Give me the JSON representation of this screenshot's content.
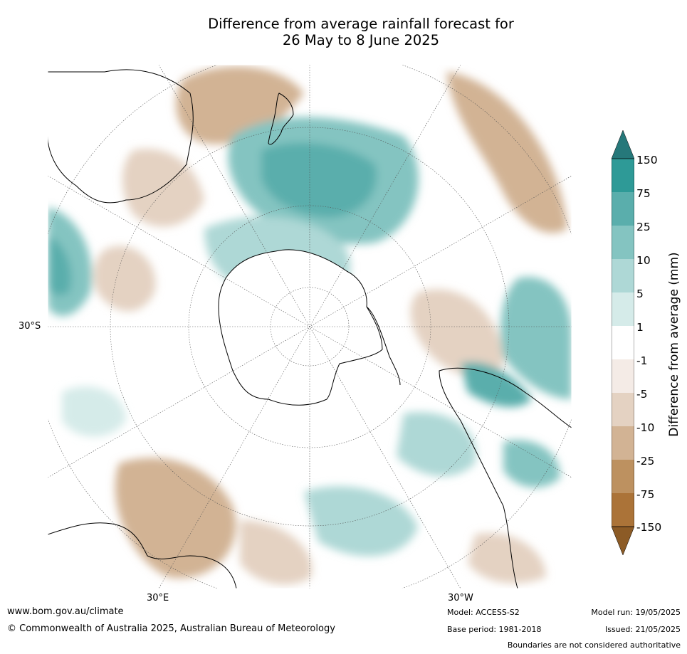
{
  "title": {
    "line1": "Difference from average rainfall forecast for",
    "line2": "26 May to 8 June 2025"
  },
  "map": {
    "projection": "south polar stereographic",
    "lat_labels": [
      "30°S",
      "30°E",
      "30°W"
    ],
    "colors": {
      "land_outline": "#000000",
      "borders": "#808080",
      "grid": "#555555",
      "antarctica": "#ffffff"
    }
  },
  "colorbar": {
    "label": "Difference from average (mm)",
    "ticks": [
      "150",
      "75",
      "25",
      "10",
      "5",
      "1",
      "-1",
      "-5",
      "-10",
      "-25",
      "-75",
      "-150"
    ],
    "colors": [
      "#26787a",
      "#2e9a97",
      "#5aaeac",
      "#84c4c1",
      "#aed8d6",
      "#d5ebe9",
      "#ffffff",
      "#f4ebe6",
      "#e4d2c2",
      "#d2b394",
      "#bd9160",
      "#ab7338",
      "#8c5b26"
    ]
  },
  "footer": {
    "url": "www.bom.gov.au/climate",
    "copyright": "© Commonwealth of Australia 2025, Australian Bureau of Meteorology",
    "model": "Model: ACCESS-S2",
    "base_period": "Base period: 1981-2018",
    "model_run": "Model run: 19/05/2025",
    "issued": "Issued: 21/05/2025",
    "boundaries": "Boundaries are not considered authoritative"
  }
}
